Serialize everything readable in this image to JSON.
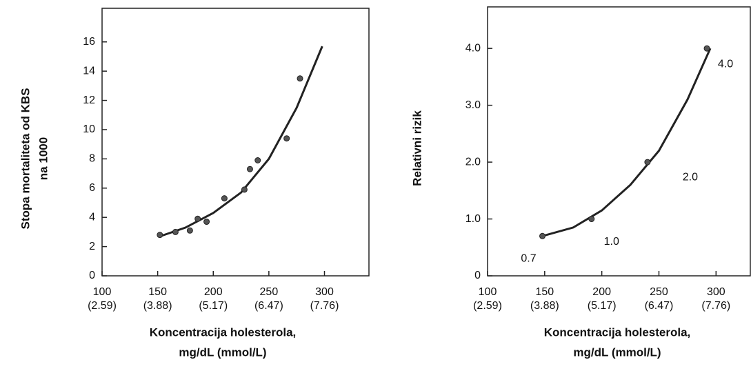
{
  "chart_data": [
    {
      "type": "scatter",
      "ylabel": [
        "Stopa mortaliteta od KBS",
        "na 1000"
      ],
      "xlabel": [
        "Koncentracija holesterola,",
        "mg/dL (mmol/L)"
      ],
      "x": [
        152,
        166,
        179,
        186,
        194,
        210,
        228,
        233,
        240,
        266,
        278
      ],
      "values": [
        2.8,
        3.0,
        3.1,
        3.9,
        3.7,
        5.3,
        5.9,
        7.3,
        7.9,
        9.4,
        13.5
      ],
      "curve": {
        "x": [
          152,
          175,
          200,
          225,
          250,
          275,
          298
        ],
        "values": [
          2.7,
          3.3,
          4.3,
          5.7,
          8.0,
          11.5,
          15.7
        ]
      },
      "color": "#555555",
      "xlim": [
        100,
        340
      ],
      "ylim": [
        0,
        18.3
      ],
      "xticks": [
        100,
        150,
        200,
        250,
        300
      ],
      "xtick_sublabels": [
        "(2.59)",
        "(3.88)",
        "(5.17)",
        "(6.47)",
        "(7.76)"
      ],
      "yticks": [
        0,
        2,
        4,
        6,
        8,
        10,
        12,
        14,
        16
      ]
    },
    {
      "type": "scatter",
      "ylabel": [
        "Relativni rizik"
      ],
      "xlabel": [
        "Koncentracija holesterola,",
        "mg/dL (mmol/L)"
      ],
      "x": [
        148,
        191,
        240,
        292
      ],
      "values": [
        0.7,
        1.0,
        2.0,
        4.0
      ],
      "value_labels": [
        "0.7",
        "1.0",
        "2.0",
        "4.0"
      ],
      "curve": {
        "x": [
          148,
          175,
          200,
          225,
          250,
          275,
          295
        ],
        "values": [
          0.7,
          0.85,
          1.15,
          1.6,
          2.2,
          3.1,
          4.0
        ]
      },
      "color": "#555555",
      "xlim": [
        100,
        330
      ],
      "ylim": [
        0,
        4.73
      ],
      "xticks": [
        100,
        150,
        200,
        250,
        300
      ],
      "xtick_sublabels": [
        "(2.59)",
        "(3.88)",
        "(5.17)",
        "(6.47)",
        "(7.76)"
      ],
      "yticks": [
        0,
        {
          "value": 1,
          "label": "1.0"
        },
        {
          "value": 2,
          "label": "2.0"
        },
        {
          "value": 3,
          "label": "3.0"
        },
        {
          "value": 4,
          "label": "4.0"
        }
      ]
    }
  ]
}
